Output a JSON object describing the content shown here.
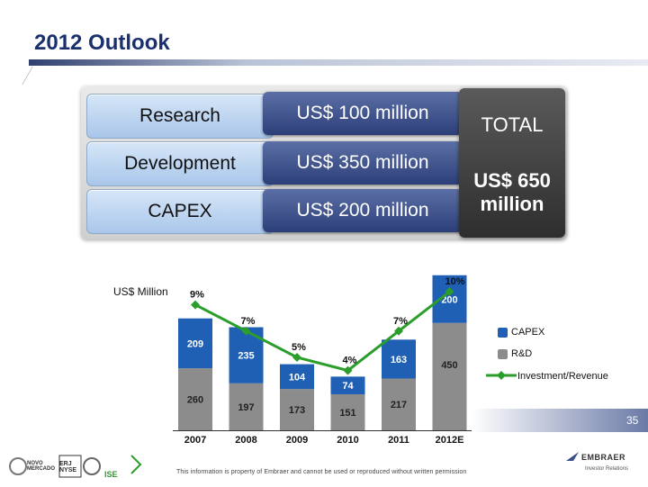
{
  "slide": {
    "title": "2012 Outlook",
    "page_number": "35"
  },
  "summary": {
    "rows": [
      {
        "label": "Research",
        "value": "US$ 100 million"
      },
      {
        "label": "Development",
        "value": "US$ 350 million"
      },
      {
        "label": "CAPEX",
        "value": "US$ 200 million"
      }
    ],
    "total_label": "TOTAL",
    "total_value": "US$ 650 million"
  },
  "chart_data": {
    "type": "bar",
    "stacked": true,
    "unit_label": "US$ Million",
    "categories": [
      "2007",
      "2008",
      "2009",
      "2010",
      "2011",
      "2012E"
    ],
    "series": [
      {
        "name": "R&D",
        "values": [
          260,
          197,
          173,
          151,
          217,
          450
        ],
        "color": "#8c8c8c"
      },
      {
        "name": "CAPEX",
        "values": [
          209,
          235,
          104,
          74,
          163,
          200
        ],
        "color": "#1f5fb4"
      }
    ],
    "line": {
      "name": "Investment/Revenue",
      "values": [
        9,
        7,
        5,
        4,
        7,
        10
      ],
      "labels": [
        "9%",
        "7%",
        "5%",
        "4%",
        "7%",
        "10%"
      ],
      "color": "#2a9d2a"
    },
    "legend": [
      "CAPEX",
      "R&D",
      "Investment/Revenue"
    ],
    "legend_position": "right"
  },
  "footer": {
    "disclaimer": "This information is property of Embraer and cannot be used or reproduced without written permission",
    "brand": "EMBRAER",
    "brand_sub": "Investor Relations",
    "listing_logos": [
      "NOVO MERCADO",
      "ERJ NYSE",
      "ISE"
    ]
  }
}
